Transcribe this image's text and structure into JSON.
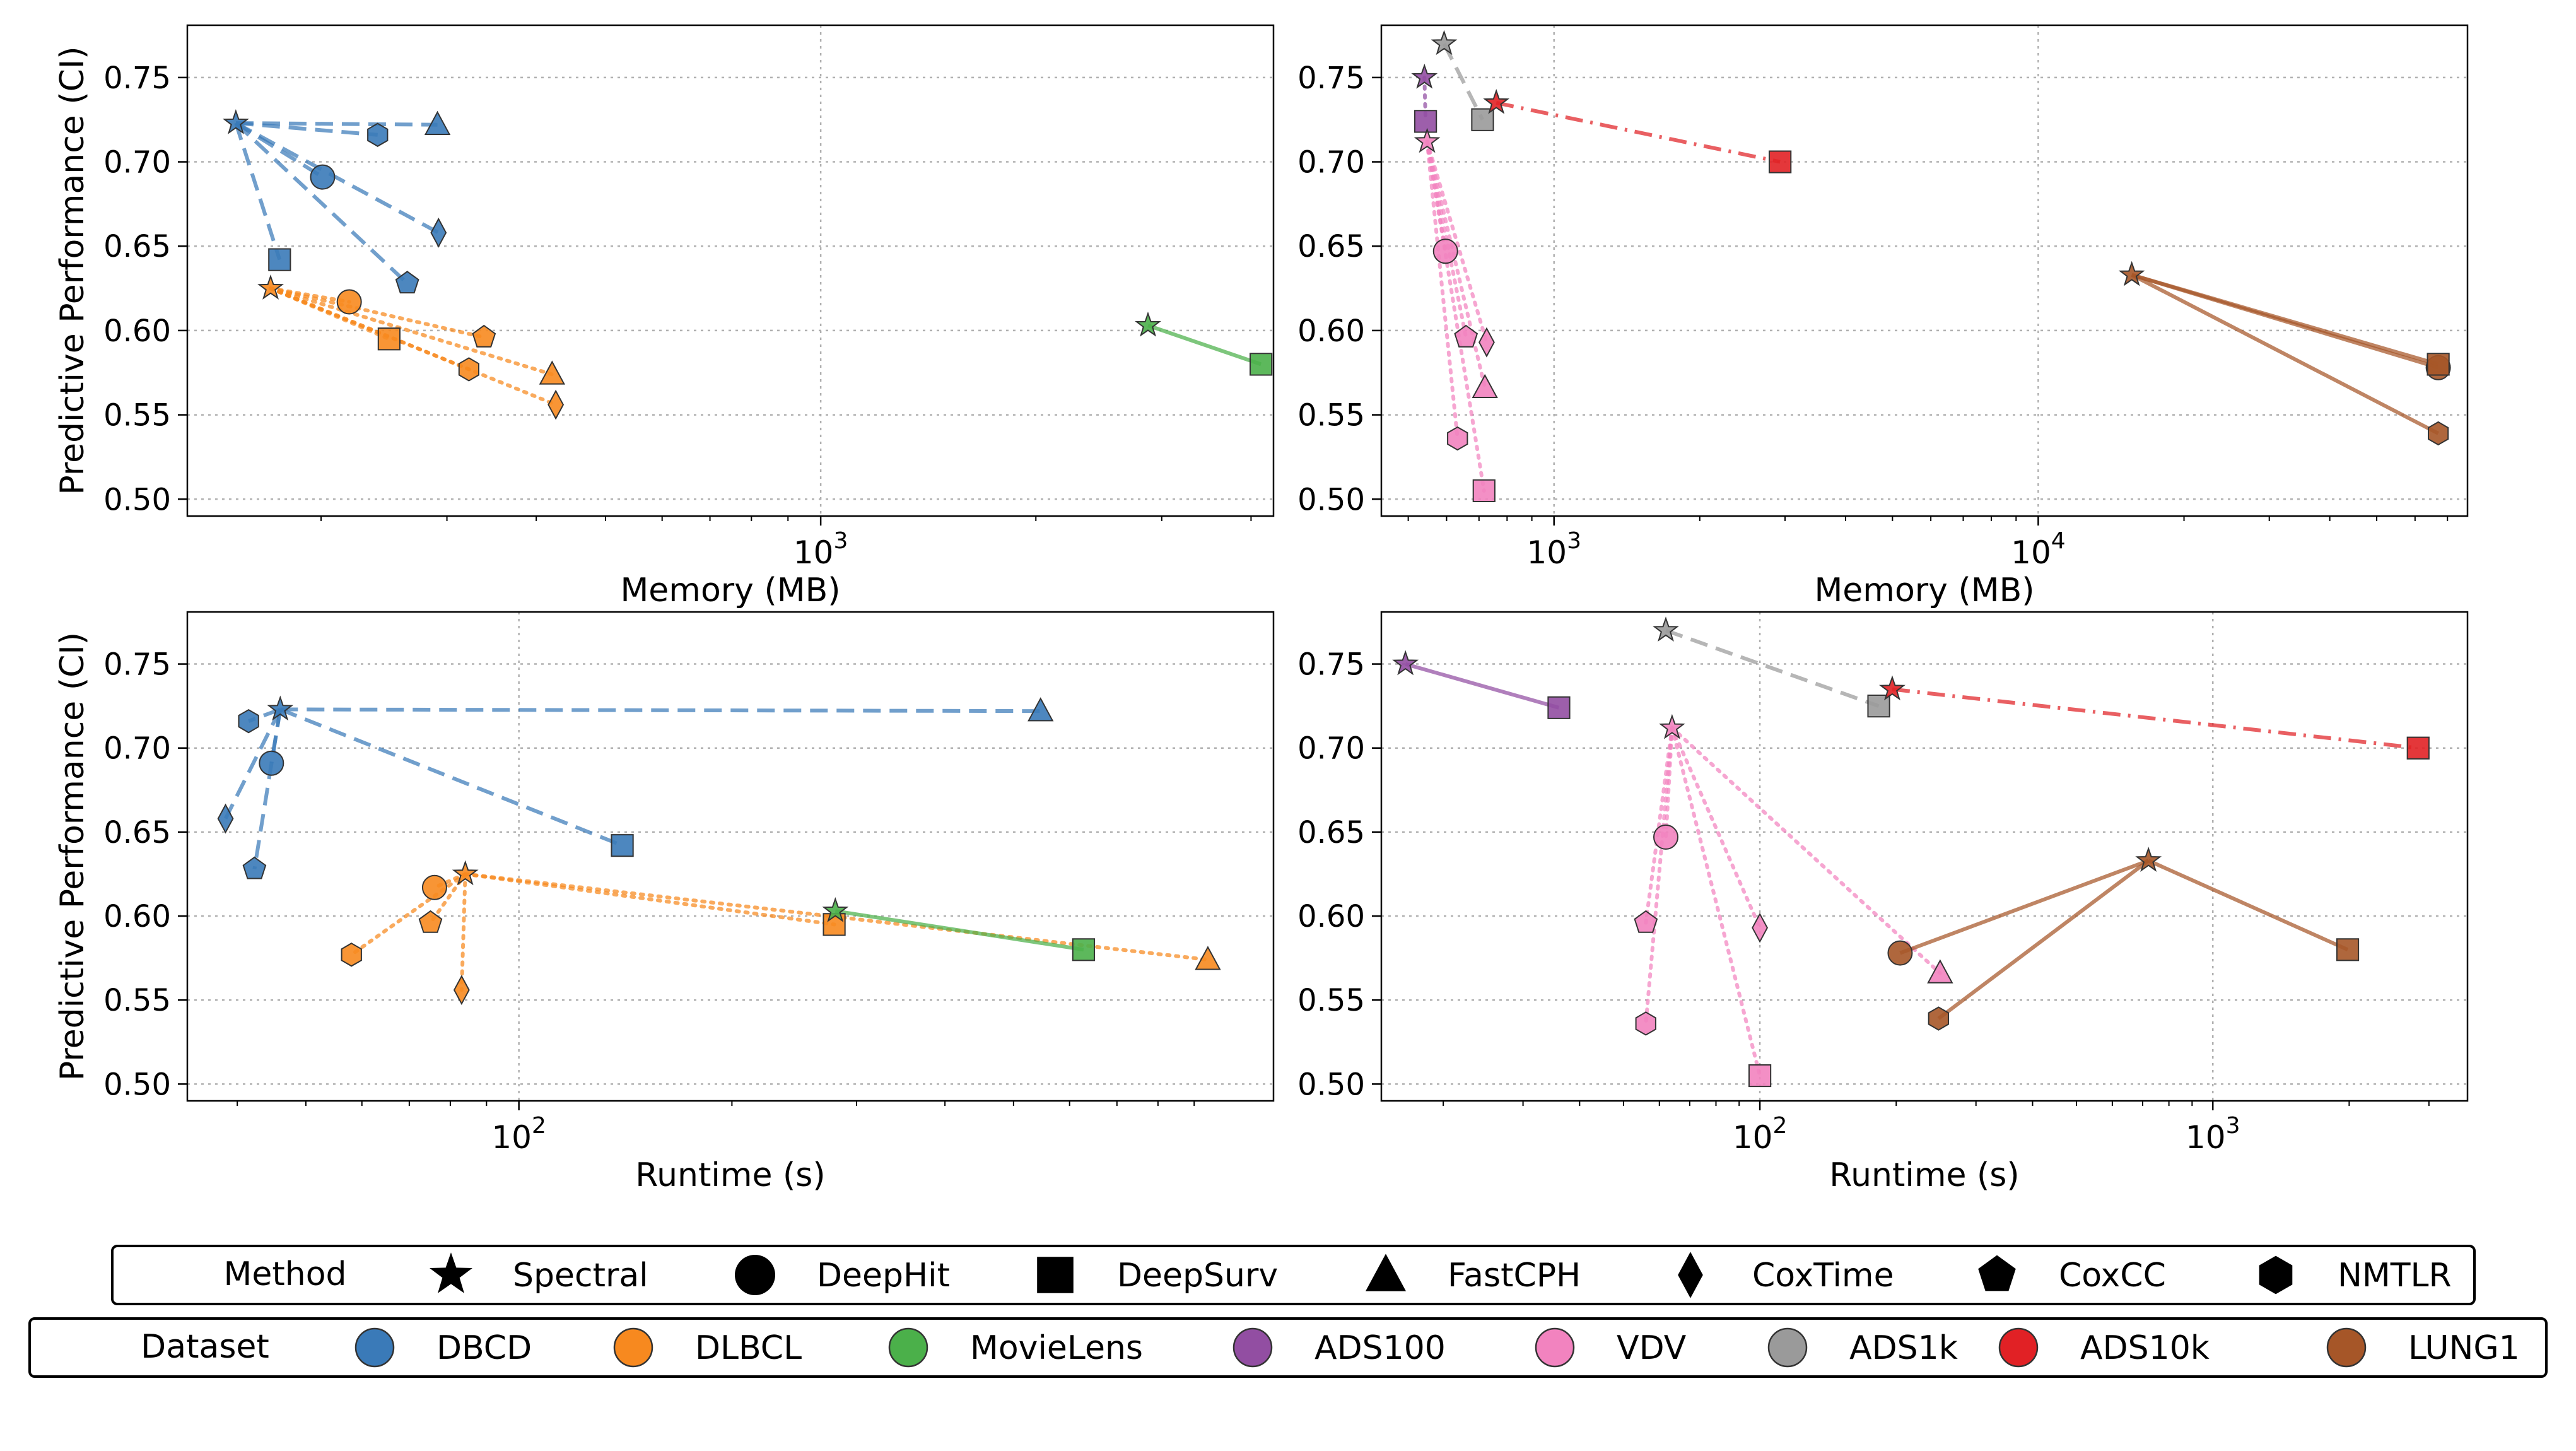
{
  "colors": {
    "DBCD": "#3a7ab8",
    "DLBCL": "#f7891f",
    "MovieLens": "#4bb04a",
    "ADS100": "#924ea2",
    "VDV": "#f283bf",
    "ADS1k": "#9a9a9a",
    "ADS10k": "#e12125",
    "LUNG1": "#a65628"
  },
  "legend": {
    "method_title": "Method",
    "methods": [
      {
        "name": "Spectral",
        "marker": "star"
      },
      {
        "name": "DeepHit",
        "marker": "circle"
      },
      {
        "name": "DeepSurv",
        "marker": "square"
      },
      {
        "name": "FastCPH",
        "marker": "triangle"
      },
      {
        "name": "CoxTime",
        "marker": "diamond"
      },
      {
        "name": "CoxCC",
        "marker": "pentagon"
      },
      {
        "name": "NMTLR",
        "marker": "hexagon"
      }
    ],
    "dataset_title": "Dataset",
    "datasets": [
      "DBCD",
      "DLBCL",
      "MovieLens",
      "ADS100",
      "VDV",
      "ADS1k",
      "ADS10k",
      "LUNG1"
    ]
  },
  "chart_data": [
    {
      "id": "memory-left",
      "type": "scatter",
      "xlabel": "Memory (MB)",
      "ylabel": "Predictive Performance (CI)",
      "xscale": "log",
      "xlim": [
        130,
        4300
      ],
      "ylim": [
        0.49,
        0.781
      ],
      "yticks": [
        "0.50",
        "0.55",
        "0.60",
        "0.65",
        "0.70",
        "0.75"
      ],
      "xticks": [
        {
          "value": 1000,
          "base": "10",
          "exp": "3"
        }
      ],
      "grid": true,
      "series": [
        {
          "dataset": "DBCD",
          "line": "dashed",
          "points": [
            {
              "method": "Spectral",
              "x": 152,
              "y": 0.723
            },
            {
              "method": "DeepHit",
              "x": 201,
              "y": 0.691
            },
            {
              "method": "DeepSurv",
              "x": 175,
              "y": 0.642
            },
            {
              "method": "FastCPH",
              "x": 291,
              "y": 0.722
            },
            {
              "method": "CoxTime",
              "x": 292,
              "y": 0.658
            },
            {
              "method": "CoxCC",
              "x": 264,
              "y": 0.628
            },
            {
              "method": "NMTLR",
              "x": 240,
              "y": 0.716
            }
          ]
        },
        {
          "dataset": "DLBCL",
          "line": "dotted",
          "points": [
            {
              "method": "Spectral",
              "x": 170,
              "y": 0.625
            },
            {
              "method": "DeepHit",
              "x": 219,
              "y": 0.617
            },
            {
              "method": "DeepSurv",
              "x": 249,
              "y": 0.595
            },
            {
              "method": "FastCPH",
              "x": 421,
              "y": 0.574
            },
            {
              "method": "CoxTime",
              "x": 426,
              "y": 0.556
            },
            {
              "method": "CoxCC",
              "x": 338,
              "y": 0.596
            },
            {
              "method": "NMTLR",
              "x": 322,
              "y": 0.577
            }
          ]
        },
        {
          "dataset": "MovieLens",
          "line": "solid",
          "points": [
            {
              "method": "Spectral",
              "x": 2870,
              "y": 0.603
            },
            {
              "method": "DeepSurv",
              "x": 4130,
              "y": 0.58
            }
          ]
        }
      ]
    },
    {
      "id": "memory-right",
      "type": "scatter",
      "xlabel": "Memory (MB)",
      "ylabel": "",
      "xscale": "log",
      "xlim": [
        440,
        77000
      ],
      "ylim": [
        0.49,
        0.781
      ],
      "yticks": [
        "0.50",
        "0.55",
        "0.60",
        "0.65",
        "0.70",
        "0.75"
      ],
      "xticks": [
        {
          "value": 1000,
          "base": "10",
          "exp": "3"
        },
        {
          "value": 10000,
          "base": "10",
          "exp": "4"
        }
      ],
      "grid": true,
      "series": [
        {
          "dataset": "ADS100",
          "line": "dotted",
          "points": [
            {
              "method": "Spectral",
              "x": 540,
              "y": 0.75
            },
            {
              "method": "DeepSurv",
              "x": 543,
              "y": 0.724
            }
          ]
        },
        {
          "dataset": "ADS1k",
          "line": "dashed",
          "points": [
            {
              "method": "Spectral",
              "x": 593,
              "y": 0.77
            },
            {
              "method": "DeepSurv",
              "x": 712,
              "y": 0.725
            }
          ]
        },
        {
          "dataset": "ADS10k",
          "line": "dashdot",
          "points": [
            {
              "method": "Spectral",
              "x": 760,
              "y": 0.735
            },
            {
              "method": "DeepSurv",
              "x": 2930,
              "y": 0.7
            }
          ]
        },
        {
          "dataset": "VDV",
          "line": "dotted",
          "points": [
            {
              "method": "Spectral",
              "x": 547,
              "y": 0.712
            },
            {
              "method": "DeepHit",
              "x": 597,
              "y": 0.647
            },
            {
              "method": "DeepSurv",
              "x": 717,
              "y": 0.505
            },
            {
              "method": "FastCPH",
              "x": 720,
              "y": 0.566
            },
            {
              "method": "CoxTime",
              "x": 726,
              "y": 0.593
            },
            {
              "method": "CoxCC",
              "x": 658,
              "y": 0.596
            },
            {
              "method": "NMTLR",
              "x": 632,
              "y": 0.536
            }
          ]
        },
        {
          "dataset": "LUNG1",
          "line": "solid",
          "points": [
            {
              "method": "Spectral",
              "x": 15600,
              "y": 0.633
            },
            {
              "method": "DeepHit",
              "x": 67000,
              "y": 0.578
            },
            {
              "method": "DeepSurv",
              "x": 67000,
              "y": 0.58
            },
            {
              "method": "NMTLR",
              "x": 67000,
              "y": 0.539
            }
          ]
        }
      ]
    },
    {
      "id": "runtime-left",
      "type": "scatter",
      "xlabel": "Runtime (s)",
      "ylabel": "Predictive Performance (CI)",
      "xscale": "log",
      "xlim": [
        34,
        1165
      ],
      "ylim": [
        0.49,
        0.781
      ],
      "yticks": [
        "0.50",
        "0.55",
        "0.60",
        "0.65",
        "0.70",
        "0.75"
      ],
      "xticks": [
        {
          "value": 100,
          "base": "10",
          "exp": "2"
        }
      ],
      "grid": true,
      "series": [
        {
          "dataset": "DBCD",
          "line": "dashed",
          "points": [
            {
              "method": "Spectral",
              "x": 46,
              "y": 0.723
            },
            {
              "method": "DeepHit",
              "x": 44.7,
              "y": 0.691
            },
            {
              "method": "DeepSurv",
              "x": 140,
              "y": 0.642
            },
            {
              "method": "FastCPH",
              "x": 546,
              "y": 0.722
            },
            {
              "method": "CoxTime",
              "x": 38.5,
              "y": 0.658
            },
            {
              "method": "CoxCC",
              "x": 42.3,
              "y": 0.628
            },
            {
              "method": "NMTLR",
              "x": 41.5,
              "y": 0.716
            }
          ]
        },
        {
          "dataset": "DLBCL",
          "line": "dotted",
          "points": [
            {
              "method": "Spectral",
              "x": 84,
              "y": 0.625
            },
            {
              "method": "DeepHit",
              "x": 76,
              "y": 0.617
            },
            {
              "method": "DeepSurv",
              "x": 279,
              "y": 0.595
            },
            {
              "method": "FastCPH",
              "x": 941,
              "y": 0.574
            },
            {
              "method": "CoxTime",
              "x": 83,
              "y": 0.556
            },
            {
              "method": "CoxCC",
              "x": 75,
              "y": 0.596
            },
            {
              "method": "NMTLR",
              "x": 58,
              "y": 0.577
            }
          ]
        },
        {
          "dataset": "MovieLens",
          "line": "solid",
          "points": [
            {
              "method": "Spectral",
              "x": 280,
              "y": 0.603
            },
            {
              "method": "DeepSurv",
              "x": 628,
              "y": 0.58
            }
          ]
        }
      ]
    },
    {
      "id": "runtime-right",
      "type": "scatter",
      "xlabel": "Runtime (s)",
      "ylabel": "",
      "xscale": "log",
      "xlim": [
        14.6,
        3650
      ],
      "ylim": [
        0.49,
        0.781
      ],
      "yticks": [
        "0.50",
        "0.55",
        "0.60",
        "0.65",
        "0.70",
        "0.75"
      ],
      "xticks": [
        {
          "value": 100,
          "base": "10",
          "exp": "2"
        },
        {
          "value": 1000,
          "base": "10",
          "exp": "3"
        }
      ],
      "grid": true,
      "series": [
        {
          "dataset": "ADS100",
          "line": "solid",
          "points": [
            {
              "method": "Spectral",
              "x": 16.5,
              "y": 0.75
            },
            {
              "method": "DeepSurv",
              "x": 36,
              "y": 0.724
            }
          ]
        },
        {
          "dataset": "ADS1k",
          "line": "dashed",
          "points": [
            {
              "method": "Spectral",
              "x": 62,
              "y": 0.77
            },
            {
              "method": "DeepSurv",
              "x": 183,
              "y": 0.725
            }
          ]
        },
        {
          "dataset": "ADS10k",
          "line": "dashdot",
          "points": [
            {
              "method": "Spectral",
              "x": 196,
              "y": 0.735
            },
            {
              "method": "DeepSurv",
              "x": 2840,
              "y": 0.7
            }
          ]
        },
        {
          "dataset": "VDV",
          "line": "dotted",
          "points": [
            {
              "method": "Spectral",
              "x": 64,
              "y": 0.712
            },
            {
              "method": "DeepHit",
              "x": 62,
              "y": 0.647
            },
            {
              "method": "DeepSurv",
              "x": 100,
              "y": 0.505
            },
            {
              "method": "FastCPH",
              "x": 250,
              "y": 0.566
            },
            {
              "method": "CoxTime",
              "x": 100,
              "y": 0.593
            },
            {
              "method": "CoxCC",
              "x": 56,
              "y": 0.596
            },
            {
              "method": "NMTLR",
              "x": 56,
              "y": 0.536
            }
          ]
        },
        {
          "dataset": "LUNG1",
          "line": "solid",
          "points": [
            {
              "method": "Spectral",
              "x": 721,
              "y": 0.633
            },
            {
              "method": "DeepHit",
              "x": 204,
              "y": 0.578
            },
            {
              "method": "DeepSurv",
              "x": 1985,
              "y": 0.58
            },
            {
              "method": "NMTLR",
              "x": 248,
              "y": 0.539
            }
          ]
        }
      ]
    }
  ]
}
